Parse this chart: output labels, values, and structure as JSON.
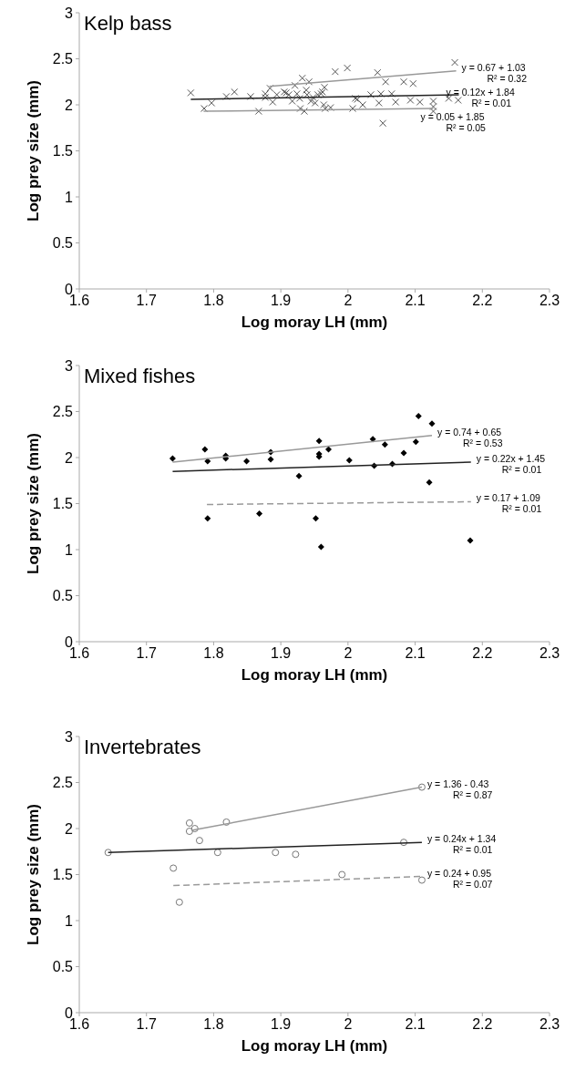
{
  "chart_data": [
    {
      "type": "scatter",
      "title": "Kelp bass",
      "xlabel": "Log moray LH (mm)",
      "ylabel": "Log prey size (mm)",
      "xlim": [
        1.6,
        2.3
      ],
      "ylim": [
        0,
        3
      ],
      "xticks": [
        1.6,
        1.7,
        1.8,
        1.9,
        2,
        2.1,
        2.2,
        2.3
      ],
      "yticks": [
        0,
        0.5,
        1,
        1.5,
        2,
        2.5,
        3
      ],
      "grid": false,
      "series": [
        {
          "marker": "cross",
          "color": "#555555",
          "x": [
            1.766,
            1.797,
            1.786,
            1.819,
            1.831,
            1.855,
            1.867,
            1.877,
            1.877,
            1.884,
            1.888,
            1.894,
            1.905,
            1.908,
            1.912,
            1.917,
            1.921,
            1.924,
            1.928,
            1.929,
            1.932,
            1.935,
            1.938,
            1.939,
            1.942,
            1.945,
            1.948,
            1.951,
            1.955,
            1.96,
            1.962,
            1.964,
            1.965,
            1.966,
            1.974,
            1.981,
            1.999,
            2.007,
            2.011,
            2.014,
            2.022,
            2.034,
            2.044,
            2.046,
            2.049,
            2.052,
            2.056,
            2.065,
            2.071,
            2.083,
            2.093,
            2.097,
            2.107,
            2.127,
            2.127,
            2.127,
            2.15,
            2.159,
            2.164
          ],
          "values": [
            2.13,
            2.02,
            1.96,
            2.09,
            2.14,
            2.09,
            1.93,
            2.12,
            2.08,
            2.18,
            2.03,
            2.11,
            2.14,
            2.13,
            2.11,
            2.04,
            2.21,
            2.12,
            2.07,
            1.96,
            2.29,
            1.93,
            2.16,
            2.11,
            2.25,
            2.04,
            2.08,
            2.02,
            2.11,
            2.12,
            2.14,
            2.0,
            2.19,
            1.96,
            1.97,
            2.36,
            2.4,
            1.96,
            2.07,
            2.06,
            2.0,
            2.11,
            2.35,
            2.02,
            2.12,
            1.8,
            2.25,
            2.12,
            2.03,
            2.25,
            2.05,
            2.23,
            2.03,
            2.04,
            1.98,
            1.93,
            2.07,
            2.46,
            2.05
          ]
        },
        {
          "type": "line",
          "color": "#999999",
          "line_style": "solid",
          "x": [
            1.883,
            2.161
          ],
          "values": [
            2.2,
            2.37
          ]
        },
        {
          "type": "line",
          "color": "#222222",
          "line_style": "solid",
          "x": [
            1.766,
            2.165
          ],
          "values": [
            2.06,
            2.11
          ]
        },
        {
          "type": "line",
          "color": "#999999",
          "line_style": "solid",
          "x": [
            1.785,
            2.127
          ],
          "values": [
            1.93,
            1.96
          ]
        }
      ],
      "annotations": [
        "y = 0.67 + 1.03\nR² = 0.32",
        "y = 0.12x + 1.84\nR² = 0.01",
        "y = 0.05 + 1.85\nR² = 0.05"
      ]
    },
    {
      "type": "scatter",
      "title": "Mixed fishes",
      "xlabel": "Log moray LH (mm)",
      "ylabel": "Log prey size (mm)",
      "xlim": [
        1.6,
        2.3
      ],
      "ylim": [
        0,
        3
      ],
      "xticks": [
        1.6,
        1.7,
        1.8,
        1.9,
        2,
        2.1,
        2.2,
        2.3
      ],
      "yticks": [
        0,
        0.5,
        1,
        1.5,
        2,
        2.5,
        3
      ],
      "grid": false,
      "series": [
        {
          "marker": "diamond",
          "color": "#000000",
          "x": [
            1.739,
            1.787,
            1.791,
            1.791,
            1.818,
            1.818,
            1.849,
            1.868,
            1.885,
            1.885,
            1.927,
            1.952,
            1.957,
            1.957,
            1.957,
            1.96,
            1.971,
            2.002,
            2.037,
            2.039,
            2.055,
            2.066,
            2.083,
            2.101,
            2.105,
            2.121,
            2.125,
            2.182
          ],
          "values": [
            1.99,
            2.09,
            1.96,
            1.34,
            2.02,
            1.99,
            1.96,
            1.39,
            2.06,
            1.98,
            1.8,
            1.34,
            2.18,
            2.04,
            2.01,
            1.03,
            2.09,
            1.97,
            2.2,
            1.91,
            2.14,
            1.93,
            2.05,
            2.17,
            2.45,
            1.73,
            2.37,
            1.1
          ]
        },
        {
          "type": "line",
          "color": "#999999",
          "line_style": "solid",
          "x": [
            1.739,
            2.125
          ],
          "values": [
            1.95,
            2.24
          ]
        },
        {
          "type": "line",
          "color": "#222222",
          "line_style": "solid",
          "x": [
            1.739,
            2.183
          ],
          "values": [
            1.85,
            1.95
          ]
        },
        {
          "type": "line",
          "color": "#999999",
          "line_style": "dashed",
          "x": [
            1.79,
            2.183
          ],
          "values": [
            1.49,
            1.52
          ]
        }
      ],
      "annotations": [
        "y = 0.74 + 0.65\nR² = 0.53",
        "y = 0.22x + 1.45\nR² = 0.01",
        "y = 0.17 + 1.09\nR² = 0.01"
      ]
    },
    {
      "type": "scatter",
      "title": "Invertebrates",
      "xlabel": "Log moray LH (mm)",
      "ylabel": "Log prey size (mm)",
      "xlim": [
        1.6,
        2.3
      ],
      "ylim": [
        0,
        3
      ],
      "xticks": [
        1.6,
        1.7,
        1.8,
        1.9,
        2,
        2.1,
        2.2,
        2.3
      ],
      "yticks": [
        0,
        0.5,
        1,
        1.5,
        2,
        2.5,
        3
      ],
      "grid": false,
      "series": [
        {
          "marker": "circle",
          "color": "#777777",
          "x": [
            1.643,
            1.764,
            1.764,
            1.772,
            1.779,
            1.806,
            1.819,
            1.892,
            1.922,
            1.74,
            1.749,
            1.991,
            2.083,
            2.11,
            2.11
          ],
          "values": [
            1.74,
            2.06,
            1.97,
            2.0,
            1.87,
            1.74,
            2.07,
            1.74,
            1.72,
            1.57,
            1.2,
            1.5,
            1.85,
            2.45,
            1.44
          ]
        },
        {
          "type": "line",
          "color": "#999999",
          "line_style": "solid",
          "x": [
            1.767,
            2.11
          ],
          "values": [
            1.98,
            2.45
          ]
        },
        {
          "type": "line",
          "color": "#222222",
          "line_style": "solid",
          "x": [
            1.643,
            2.11
          ],
          "values": [
            1.74,
            1.85
          ]
        },
        {
          "type": "line",
          "color": "#999999",
          "line_style": "dashed",
          "x": [
            1.74,
            2.11
          ],
          "values": [
            1.38,
            1.48
          ]
        }
      ],
      "annotations": [
        "y = 1.36 - 0.43\nR² = 0.87",
        "y = 0.24x + 1.34\nR² = 0.01",
        "y = 0.24 + 0.95\nR² = 0.07"
      ]
    }
  ]
}
